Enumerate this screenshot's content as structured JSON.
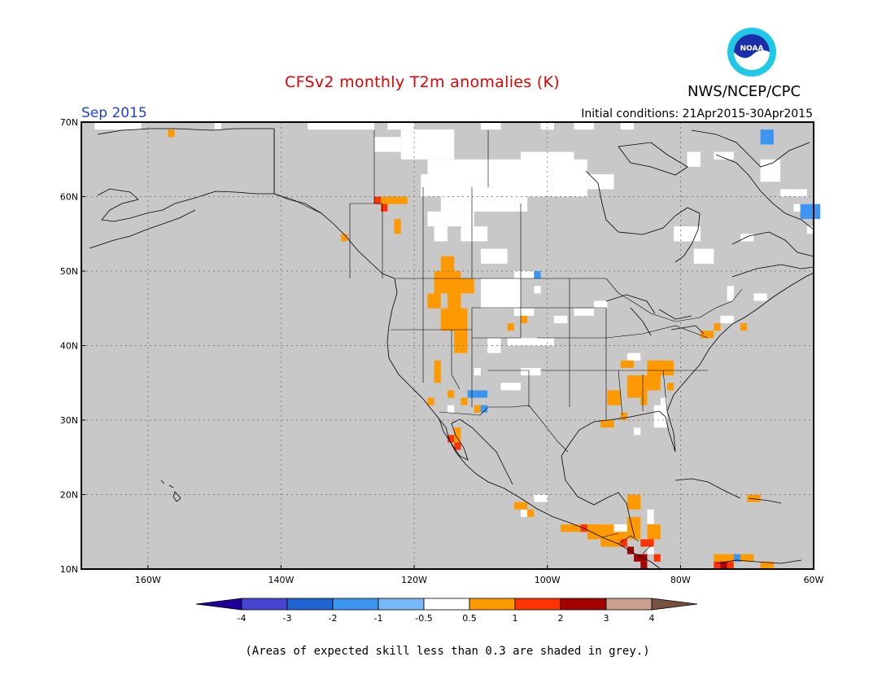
{
  "header": {
    "title": "CFSv2 monthly T2m anomalies (K)",
    "agency": "NWS/NCEP/CPC",
    "month": "Sep 2015",
    "initial_conditions": "Initial conditions: 21Apr2015-30Apr2015",
    "logo_text": "NOAA"
  },
  "map": {
    "lon_range": [
      -170,
      -60
    ],
    "lat_range": [
      10,
      70
    ],
    "land_color": "#c8c8c8",
    "ocean_color": "#c8c8c8",
    "lat_ticks": [
      {
        "value": 70,
        "label": "70N"
      },
      {
        "value": 60,
        "label": "60N"
      },
      {
        "value": 50,
        "label": "50N"
      },
      {
        "value": 40,
        "label": "40N"
      },
      {
        "value": 30,
        "label": "30N"
      },
      {
        "value": 20,
        "label": "20N"
      },
      {
        "value": 10,
        "label": "10N"
      }
    ],
    "lon_ticks": [
      {
        "value": -160,
        "label": "160W"
      },
      {
        "value": -140,
        "label": "140W"
      },
      {
        "value": -120,
        "label": "120W"
      },
      {
        "value": -100,
        "label": "100W"
      },
      {
        "value": -80,
        "label": "80W"
      },
      {
        "value": -60,
        "label": "60W"
      }
    ],
    "gridlines": true
  },
  "colorbar": {
    "levels": [
      "-4",
      "-3",
      "-2",
      "-1",
      "-0.5",
      "0.5",
      "1",
      "2",
      "3",
      "4"
    ],
    "colors": [
      "#1e0096",
      "#4646d2",
      "#1e64d2",
      "#3c96f0",
      "#78b9fa",
      "#ffffff",
      "#ff9900",
      "#ff3300",
      "#a50000",
      "#c8a08c",
      "#785040"
    ]
  },
  "anomaly_patches": [
    {
      "color": "#ffffff",
      "cells": [
        [
          -168,
          69,
          6,
          1
        ],
        [
          -163,
          69,
          2,
          1
        ],
        [
          -150,
          69,
          1,
          1
        ],
        [
          -136,
          69,
          10,
          1
        ],
        [
          -124,
          69,
          4,
          1
        ],
        [
          -110,
          69,
          3,
          1
        ],
        [
          -101,
          69,
          2,
          1
        ],
        [
          -96,
          69,
          3,
          1
        ],
        [
          -89,
          69,
          2,
          1
        ],
        [
          -126,
          66,
          4,
          2
        ],
        [
          -122,
          65,
          8,
          4
        ],
        [
          -118,
          62,
          24,
          3
        ],
        [
          -104,
          63,
          8,
          3
        ],
        [
          -94,
          61,
          4,
          2
        ],
        [
          -119,
          60,
          25,
          3
        ],
        [
          -116,
          58,
          13,
          2
        ],
        [
          -118,
          56,
          7,
          2
        ],
        [
          -113,
          54,
          4,
          2
        ],
        [
          -117,
          54,
          2,
          2
        ],
        [
          -110,
          51,
          4,
          2
        ],
        [
          -110,
          45,
          6,
          4
        ],
        [
          -105,
          49,
          3,
          1
        ],
        [
          -105,
          44,
          3,
          1
        ],
        [
          -102,
          47,
          1,
          1
        ],
        [
          -109,
          39,
          2,
          2
        ],
        [
          -106,
          40,
          5,
          1
        ],
        [
          -101,
          40,
          2,
          1
        ],
        [
          -104,
          36,
          3,
          1
        ],
        [
          -99,
          43,
          2,
          1
        ],
        [
          -96,
          44,
          3,
          1
        ],
        [
          -93,
          45,
          2,
          1
        ],
        [
          -107,
          34,
          3,
          1
        ],
        [
          -79,
          64,
          2,
          2
        ],
        [
          -75,
          65,
          3,
          1
        ],
        [
          -81,
          54,
          4,
          2
        ],
        [
          -78,
          51,
          3,
          2
        ],
        [
          -68,
          62,
          3,
          3
        ],
        [
          -65,
          60,
          4,
          1
        ],
        [
          -63,
          58,
          3,
          1
        ],
        [
          -71,
          54,
          2,
          1
        ],
        [
          -61,
          55,
          2,
          1
        ],
        [
          -60,
          49,
          3,
          1
        ],
        [
          -69,
          46,
          2,
          1
        ],
        [
          -73,
          46,
          1,
          2
        ],
        [
          -84,
          29,
          2,
          3
        ],
        [
          -83,
          32,
          1,
          1
        ],
        [
          -87,
          28,
          1,
          1
        ],
        [
          -93,
          14,
          4,
          2
        ],
        [
          -88,
          18,
          1,
          2
        ],
        [
          -85,
          16,
          1,
          2
        ],
        [
          -91,
          15,
          3,
          1
        ],
        [
          -85,
          12,
          1,
          2
        ],
        [
          -102,
          19,
          2,
          1
        ],
        [
          -104,
          17,
          1,
          1
        ],
        [
          -111,
          36,
          1,
          1
        ],
        [
          -115,
          31,
          1,
          1
        ],
        [
          -74,
          43,
          2,
          1
        ],
        [
          -88,
          38,
          2,
          1
        ]
      ]
    },
    {
      "color": "#ff9900",
      "cells": [
        [
          -157,
          68,
          1,
          1
        ],
        [
          -125,
          59,
          4,
          1
        ],
        [
          -123,
          55,
          1,
          2
        ],
        [
          -131,
          54,
          1,
          1
        ],
        [
          -116,
          50,
          2,
          2
        ],
        [
          -117,
          47,
          4,
          3
        ],
        [
          -115,
          45,
          2,
          2
        ],
        [
          -118,
          45,
          2,
          2
        ],
        [
          -113,
          47,
          2,
          2
        ],
        [
          -116,
          42,
          4,
          3
        ],
        [
          -114,
          39,
          2,
          3
        ],
        [
          -117,
          35,
          1,
          3
        ],
        [
          -118,
          32,
          1,
          1
        ],
        [
          -115,
          33,
          1,
          1
        ],
        [
          -113,
          32,
          1,
          1
        ],
        [
          -111,
          31,
          1,
          1
        ],
        [
          -114,
          27,
          1,
          2
        ],
        [
          -104,
          43,
          1,
          1
        ],
        [
          -106,
          42,
          1,
          1
        ],
        [
          -91,
          32,
          2,
          2
        ],
        [
          -88,
          33,
          3,
          3
        ],
        [
          -89,
          37,
          2,
          1
        ],
        [
          -85,
          34,
          2,
          4
        ],
        [
          -84,
          36,
          3,
          2
        ],
        [
          -82,
          34,
          1,
          1
        ],
        [
          -89,
          30,
          1,
          1
        ],
        [
          -92,
          29,
          2,
          1
        ],
        [
          -86,
          32,
          1,
          1
        ],
        [
          -75,
          42,
          1,
          1
        ],
        [
          -77,
          41,
          2,
          1
        ],
        [
          -71,
          42,
          1,
          1
        ],
        [
          -98,
          15,
          4,
          1
        ],
        [
          -94,
          14,
          4,
          2
        ],
        [
          -92,
          13,
          4,
          2
        ],
        [
          -88,
          14,
          2,
          3
        ],
        [
          -85,
          14,
          2,
          2
        ],
        [
          -88,
          18,
          2,
          2
        ],
        [
          -105,
          18,
          2,
          1
        ],
        [
          -103,
          17,
          1,
          1
        ],
        [
          -70,
          19,
          2,
          1
        ],
        [
          -75,
          11,
          6,
          1
        ],
        [
          -68,
          10,
          2,
          1
        ]
      ]
    },
    {
      "color": "#ff3300",
      "cells": [
        [
          -126,
          59,
          1,
          1
        ],
        [
          -125,
          58,
          1,
          1
        ],
        [
          -115,
          27,
          1,
          1
        ],
        [
          -114,
          26,
          1,
          1
        ],
        [
          -95,
          15,
          1,
          1
        ],
        [
          -89,
          13,
          1,
          1
        ],
        [
          -86,
          13,
          2,
          1
        ],
        [
          -75,
          10,
          3,
          1
        ],
        [
          -84,
          11,
          1,
          1
        ]
      ]
    },
    {
      "color": "#a50000",
      "cells": [
        [
          -88,
          12,
          1,
          1
        ],
        [
          -87,
          11,
          2,
          1
        ],
        [
          -86,
          10,
          1,
          1
        ],
        [
          -74,
          10,
          1,
          1
        ]
      ]
    },
    {
      "color": "#3c96f0",
      "cells": [
        [
          -112,
          33,
          3,
          1
        ],
        [
          -110,
          31,
          1,
          1
        ],
        [
          -68,
          67,
          2,
          2
        ],
        [
          -62,
          57,
          3,
          2
        ],
        [
          -102,
          49,
          1,
          1
        ],
        [
          -72,
          11,
          1,
          1
        ]
      ]
    }
  ]
}
